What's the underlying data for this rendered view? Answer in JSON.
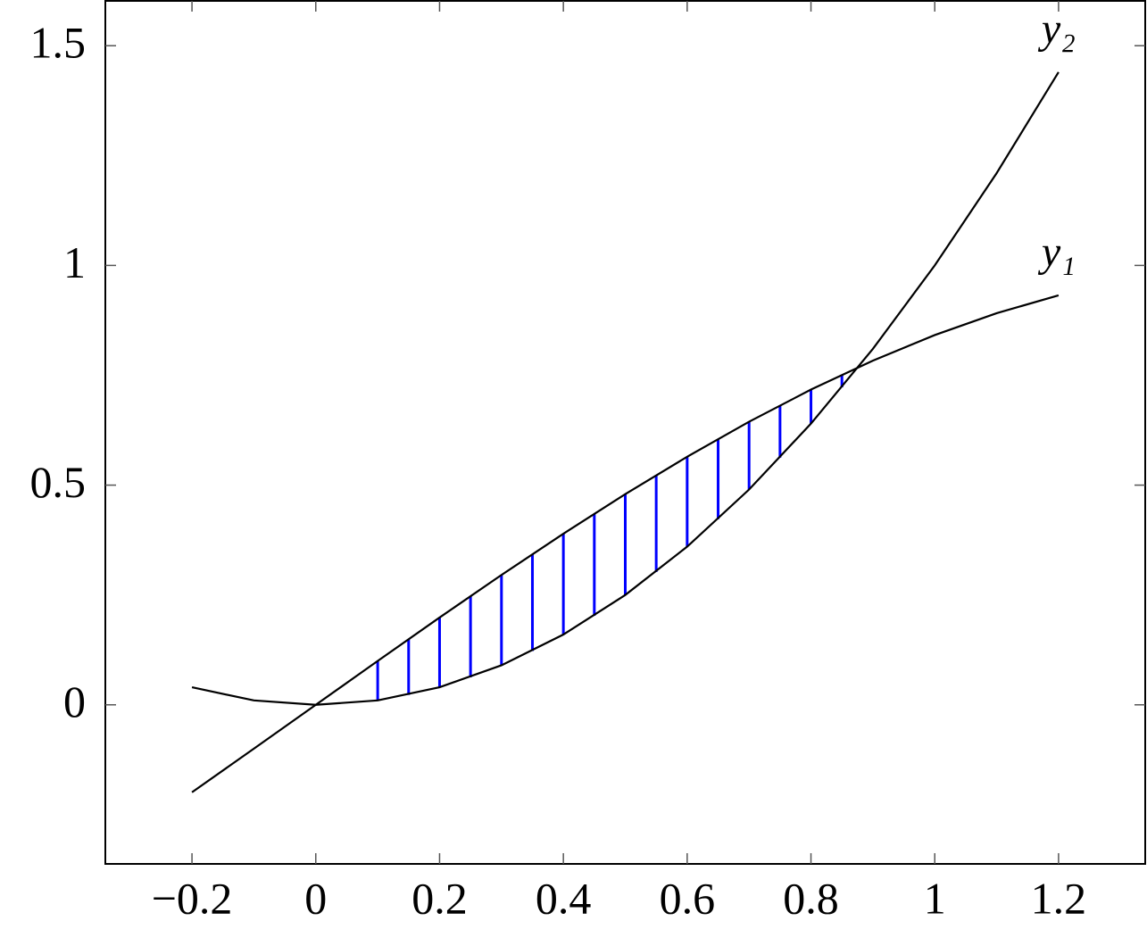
{
  "chart_data": {
    "type": "line",
    "x": [
      -0.2,
      -0.1,
      0,
      0.1,
      0.2,
      0.3,
      0.4,
      0.5,
      0.6,
      0.7,
      0.8,
      0.9,
      1,
      1.1,
      1.2
    ],
    "series": [
      {
        "name": "y₁",
        "color": "#000000",
        "values": [
          -0.199,
          -0.0998,
          0,
          0.0998,
          0.1987,
          0.2955,
          0.3894,
          0.4794,
          0.5646,
          0.6442,
          0.7174,
          0.7833,
          0.8415,
          0.8912,
          0.932
        ]
      },
      {
        "name": "y₂",
        "color": "#000000",
        "values": [
          0.04,
          0.01,
          0,
          0.01,
          0.04,
          0.09,
          0.16,
          0.25,
          0.36,
          0.49,
          0.64,
          0.81,
          1,
          1.21,
          1.44
        ]
      }
    ],
    "fill_lines": {
      "color": "#0000ff",
      "x": [
        0.1,
        0.15,
        0.2,
        0.25,
        0.3,
        0.35,
        0.4,
        0.45,
        0.5,
        0.55,
        0.6,
        0.65,
        0.7,
        0.75,
        0.8,
        0.85
      ],
      "low": [
        0.01,
        0.0225,
        0.04,
        0.0625,
        0.09,
        0.1225,
        0.16,
        0.2025,
        0.25,
        0.3025,
        0.36,
        0.4225,
        0.49,
        0.5625,
        0.64,
        0.7225
      ],
      "high": [
        0.0998,
        0.1494,
        0.1987,
        0.2474,
        0.2955,
        0.3429,
        0.3894,
        0.435,
        0.4794,
        0.5227,
        0.5646,
        0.6052,
        0.6442,
        0.6816,
        0.7174,
        0.7513
      ]
    },
    "xlim": [
      -0.34,
      1.34
    ],
    "ylim": [
      -0.362,
      1.602
    ],
    "xticks": [
      {
        "value": -0.2,
        "label": "−0.2"
      },
      0,
      0.2,
      0.4,
      0.6,
      0.8,
      1,
      1.2
    ],
    "yticks": [
      0,
      0.5,
      1,
      1.5
    ]
  }
}
